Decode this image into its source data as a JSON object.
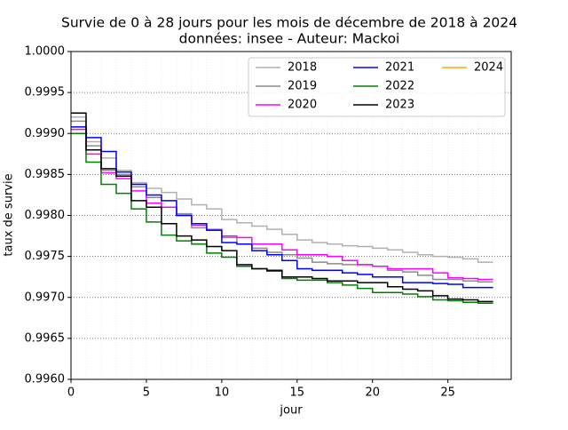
{
  "chart_data": {
    "type": "step",
    "title": "Survie de 0 à 28 jours pour les mois de décembre de 2018 à 2024",
    "subtitle": "données: insee - Auteur: Mackoi",
    "x_label": "jour",
    "y_label": "taux de survie",
    "x": [
      0,
      1,
      2,
      3,
      4,
      5,
      6,
      7,
      8,
      9,
      10,
      11,
      12,
      13,
      14,
      15,
      16,
      17,
      18,
      19,
      20,
      21,
      22,
      23,
      24,
      25,
      26,
      27,
      28
    ],
    "xlim": [
      0,
      29.2
    ],
    "xticks": [
      0,
      5,
      10,
      15,
      20,
      25
    ],
    "ylim": [
      0.996,
      1.0
    ],
    "yticks": [
      {
        "value": 0.996,
        "label": "0.9960"
      },
      {
        "value": 0.9965,
        "label": "0.9965"
      },
      {
        "value": 0.997,
        "label": "0.9970"
      },
      {
        "value": 0.9975,
        "label": "0.9975"
      },
      {
        "value": 0.998,
        "label": "0.9980"
      },
      {
        "value": 0.9985,
        "label": "0.9985"
      },
      {
        "value": 0.999,
        "label": "0.9990"
      },
      {
        "value": 0.9995,
        "label": "0.9995"
      },
      {
        "value": 1.0,
        "label": "1.0000"
      }
    ],
    "grid": true,
    "legend": "upper right",
    "legend_columns": 3,
    "series": [
      {
        "name": "2018",
        "color": "#b0b0b0",
        "values": [
          0.9992,
          0.9989,
          0.9987,
          0.99855,
          0.9984,
          0.99833,
          0.99828,
          0.9982,
          0.99813,
          0.99808,
          0.99795,
          0.99791,
          0.99787,
          0.99783,
          0.99777,
          0.9977,
          0.99767,
          0.99765,
          0.99763,
          0.99762,
          0.9976,
          0.99758,
          0.99755,
          0.99752,
          0.9975,
          0.99749,
          0.99747,
          0.99743,
          0.99743
        ]
      },
      {
        "name": "2019",
        "color": "#8c8c8c",
        "values": [
          0.99915,
          0.99885,
          0.99855,
          0.9985,
          0.99835,
          0.99822,
          0.9981,
          0.99802,
          0.99785,
          0.99783,
          0.99773,
          0.99765,
          0.9976,
          0.99755,
          0.99752,
          0.99748,
          0.99743,
          0.99741,
          0.9974,
          0.9974,
          0.99738,
          0.99733,
          0.99731,
          0.99727,
          0.99722,
          0.99722,
          0.9972,
          0.99719,
          0.99719
        ]
      },
      {
        "name": "2020",
        "color": "#ff00ff",
        "values": [
          0.99905,
          0.99875,
          0.99852,
          0.99845,
          0.9983,
          0.99815,
          0.9981,
          0.998,
          0.99788,
          0.99782,
          0.99775,
          0.99773,
          0.99765,
          0.99765,
          0.99758,
          0.99752,
          0.99752,
          0.9975,
          0.99745,
          0.9974,
          0.99738,
          0.99735,
          0.99735,
          0.99735,
          0.9973,
          0.99724,
          0.99723,
          0.99722,
          0.99722
        ]
      },
      {
        "name": "2021",
        "color": "#0000ff",
        "values": [
          0.99908,
          0.99895,
          0.99878,
          0.99853,
          0.99838,
          0.99825,
          0.99818,
          0.998,
          0.9979,
          0.99782,
          0.99767,
          0.99765,
          0.99757,
          0.99752,
          0.99745,
          0.99735,
          0.99733,
          0.99733,
          0.9973,
          0.99728,
          0.99725,
          0.99725,
          0.99718,
          0.99718,
          0.99717,
          0.99716,
          0.99712,
          0.99712,
          0.99712
        ]
      },
      {
        "name": "2022",
        "color": "#008000",
        "values": [
          0.999,
          0.99865,
          0.99838,
          0.99827,
          0.99808,
          0.99792,
          0.99776,
          0.99769,
          0.99765,
          0.99754,
          0.99749,
          0.99738,
          0.99735,
          0.99732,
          0.99723,
          0.99721,
          0.99721,
          0.99718,
          0.99715,
          0.99711,
          0.99706,
          0.99706,
          0.99704,
          0.99701,
          0.99697,
          0.99696,
          0.99694,
          0.99693,
          0.99693
        ]
      },
      {
        "name": "2023",
        "color": "#000000",
        "values": [
          0.99925,
          0.9988,
          0.99857,
          0.99848,
          0.99818,
          0.9981,
          0.9979,
          0.99775,
          0.9977,
          0.99762,
          0.99757,
          0.9974,
          0.99735,
          0.99733,
          0.99725,
          0.99725,
          0.99723,
          0.9972,
          0.9972,
          0.99718,
          0.99718,
          0.99713,
          0.9971,
          0.99708,
          0.99702,
          0.99698,
          0.99697,
          0.99695,
          0.99695
        ]
      },
      {
        "name": "2024",
        "color": "#ffa500",
        "values": [
          null,
          null,
          null,
          null,
          null,
          null,
          null,
          null,
          null,
          null,
          null,
          null,
          null,
          null,
          null,
          null,
          null,
          null,
          null,
          null,
          null,
          null,
          null,
          null,
          null,
          null,
          null,
          null,
          null
        ]
      }
    ]
  }
}
